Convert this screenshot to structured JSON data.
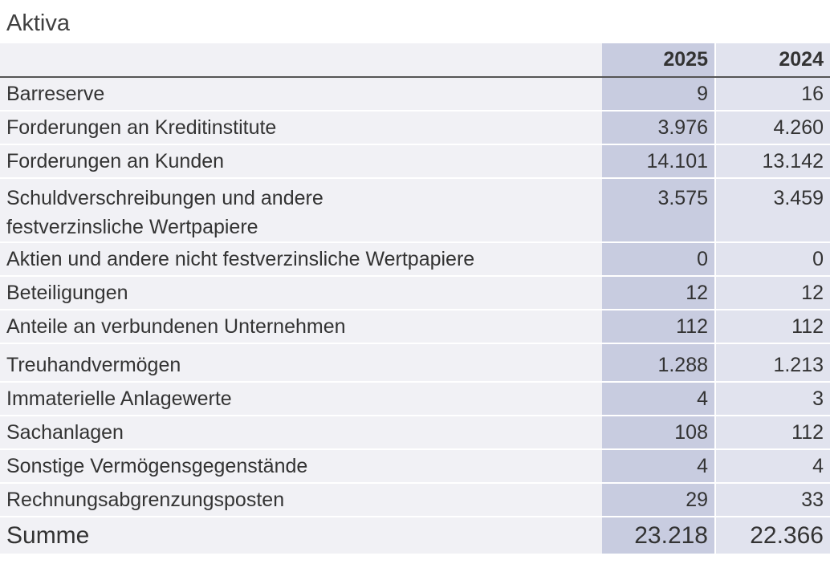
{
  "title": "Aktiva",
  "columns": [
    "2025",
    "2024"
  ],
  "rows": [
    {
      "label": "Barreserve",
      "v2025": "9",
      "v2024": "16"
    },
    {
      "label": "Forderungen an Kreditinstitute",
      "v2025": "3.976",
      "v2024": "4.260"
    },
    {
      "label": "Forderungen an Kunden",
      "v2025": "14.101",
      "v2024": "13.142"
    },
    {
      "label": "Schuldverschreibungen und andere festverzinsliche Wertpapiere",
      "v2025": "3.575",
      "v2024": "3.459"
    },
    {
      "label": "Aktien und andere nicht festverzinsliche Wertpapiere",
      "v2025": "0",
      "v2024": "0"
    },
    {
      "label": "Beteiligungen",
      "v2025": "12",
      "v2024": "12"
    },
    {
      "label": "Anteile an verbundenen Unternehmen",
      "v2025": "112",
      "v2024": "112"
    },
    {
      "label": "Treuhandvermögen",
      "v2025": "1.288",
      "v2024": "1.213"
    },
    {
      "label": "Immaterielle Anlagewerte",
      "v2025": "4",
      "v2024": "3"
    },
    {
      "label": "Sachanlagen",
      "v2025": "108",
      "v2024": "112"
    },
    {
      "label": "Sonstige Vermögensgegenstände",
      "v2025": "4",
      "v2024": "4"
    },
    {
      "label": "Rechnungsabgrenzungsposten",
      "v2025": "29",
      "v2024": "33"
    }
  ],
  "total": {
    "label": "Summe",
    "v2025": "23.218",
    "v2024": "22.366"
  }
}
